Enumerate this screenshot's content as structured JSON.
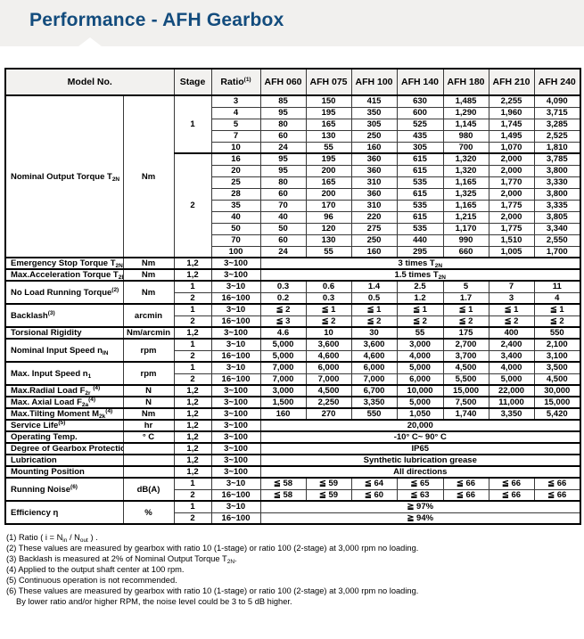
{
  "page": {
    "title": "Performance - AFH Gearbox"
  },
  "colors": {
    "title": "#134c7d",
    "banner_bg": "#f1f0ee",
    "header_bg": "#f2f1ef"
  },
  "table": {
    "header": {
      "model_label": "Model No.",
      "stage_label": "Stage",
      "ratio_label": "Ratio^(1)^",
      "models": [
        "AFH 060",
        "AFH 075",
        "AFH 100",
        "AFH 140",
        "AFH 180",
        "AFH 210",
        "AFH 240"
      ]
    },
    "torque_section": {
      "label": "Nominal Output Torque T~2N~",
      "unit": "Nm",
      "stages": [
        {
          "stage": "1",
          "rows": [
            {
              "ratio": "3",
              "values": [
                "85",
                "150",
                "415",
                "630",
                "1,485",
                "2,255",
                "4,090"
              ]
            },
            {
              "ratio": "4",
              "values": [
                "95",
                "195",
                "350",
                "600",
                "1,290",
                "1,960",
                "3,715"
              ]
            },
            {
              "ratio": "5",
              "values": [
                "80",
                "165",
                "305",
                "525",
                "1,145",
                "1,745",
                "3,285"
              ]
            },
            {
              "ratio": "7",
              "values": [
                "60",
                "130",
                "250",
                "435",
                "980",
                "1,495",
                "2,525"
              ]
            },
            {
              "ratio": "10",
              "values": [
                "24",
                "55",
                "160",
                "305",
                "700",
                "1,070",
                "1,810"
              ]
            }
          ]
        },
        {
          "stage": "2",
          "rows": [
            {
              "ratio": "16",
              "values": [
                "95",
                "195",
                "360",
                "615",
                "1,320",
                "2,000",
                "3,785"
              ]
            },
            {
              "ratio": "20",
              "values": [
                "95",
                "200",
                "360",
                "615",
                "1,320",
                "2,000",
                "3,800"
              ]
            },
            {
              "ratio": "25",
              "values": [
                "80",
                "165",
                "310",
                "535",
                "1,165",
                "1,770",
                "3,330"
              ]
            },
            {
              "ratio": "28",
              "values": [
                "60",
                "200",
                "360",
                "615",
                "1,325",
                "2,000",
                "3,800"
              ]
            },
            {
              "ratio": "35",
              "values": [
                "70",
                "170",
                "310",
                "535",
                "1,165",
                "1,775",
                "3,335"
              ]
            },
            {
              "ratio": "40",
              "values": [
                "40",
                "96",
                "220",
                "615",
                "1,215",
                "2,000",
                "3,805"
              ]
            },
            {
              "ratio": "50",
              "values": [
                "50",
                "120",
                "275",
                "535",
                "1,170",
                "1,775",
                "3,340"
              ]
            },
            {
              "ratio": "70",
              "values": [
                "60",
                "130",
                "250",
                "440",
                "990",
                "1,510",
                "2,550"
              ]
            },
            {
              "ratio": "100",
              "values": [
                "24",
                "55",
                "160",
                "295",
                "660",
                "1,005",
                "1,700"
              ]
            }
          ]
        }
      ]
    },
    "spec_sections": [
      {
        "label": "Emergency Stop Torque T~2NOT~",
        "unit": "Nm",
        "rows": [
          {
            "stage": "1,2",
            "ratio": "3~100",
            "span": "3 times T~2N~"
          }
        ]
      },
      {
        "label": "Max.Acceleration Torque T~2B~",
        "unit": "Nm",
        "rows": [
          {
            "stage": "1,2",
            "ratio": "3~100",
            "span": "1.5 times T~2N~"
          }
        ]
      },
      {
        "label": "No Load Running Torque^(2)^",
        "unit": "Nm",
        "rows": [
          {
            "stage": "1",
            "ratio": "3~10",
            "values": [
              "0.3",
              "0.6",
              "1.4",
              "2.5",
              "5",
              "7",
              "11"
            ]
          },
          {
            "stage": "2",
            "ratio": "16~100",
            "values": [
              "0.2",
              "0.3",
              "0.5",
              "1.2",
              "1.7",
              "3",
              "4"
            ]
          }
        ]
      },
      {
        "label": "Backlash^(3)^",
        "unit": "arcmin",
        "rows": [
          {
            "stage": "1",
            "ratio": "3~10",
            "values": [
              "≦ 2",
              "≦ 1",
              "≦ 1",
              "≦ 1",
              "≦ 1",
              "≦ 1",
              "≦ 1"
            ]
          },
          {
            "stage": "2",
            "ratio": "16~100",
            "values": [
              "≦ 3",
              "≦ 2",
              "≦ 2",
              "≦ 2",
              "≦ 2",
              "≦ 2",
              "≦ 2"
            ]
          }
        ]
      },
      {
        "label": "Torsional Rigidity",
        "unit": "Nm/arcmin",
        "rows": [
          {
            "stage": "1,2",
            "ratio": "3~100",
            "values": [
              "4.6",
              "10",
              "30",
              "55",
              "175",
              "400",
              "550"
            ]
          }
        ]
      },
      {
        "label": "Nominal Input Speed n~IN~",
        "unit": "rpm",
        "rows": [
          {
            "stage": "1",
            "ratio": "3~10",
            "values": [
              "5,000",
              "3,600",
              "3,600",
              "3,000",
              "2,700",
              "2,400",
              "2,100"
            ]
          },
          {
            "stage": "2",
            "ratio": "16~100",
            "values": [
              "5,000",
              "4,600",
              "4,600",
              "4,000",
              "3,700",
              "3,400",
              "3,100"
            ]
          }
        ]
      },
      {
        "label": "Max. Input Speed n~1~",
        "unit": "rpm",
        "rows": [
          {
            "stage": "1",
            "ratio": "3~10",
            "values": [
              "7,000",
              "6,000",
              "6,000",
              "5,000",
              "4,500",
              "4,000",
              "3,500"
            ]
          },
          {
            "stage": "2",
            "ratio": "16~100",
            "values": [
              "7,000",
              "7,000",
              "7,000",
              "6,000",
              "5,500",
              "5,000",
              "4,500"
            ]
          }
        ]
      },
      {
        "label": "Max.Radial Load F~2r~ ^(4)^",
        "unit": "N",
        "rows": [
          {
            "stage": "1,2",
            "ratio": "3~100",
            "values": [
              "3,000",
              "4,500",
              "6,700",
              "10,000",
              "15,000",
              "22,000",
              "30,000"
            ]
          }
        ]
      },
      {
        "label": "Max. Axial Load F~2a~^(4)^",
        "unit": "N",
        "rows": [
          {
            "stage": "1,2",
            "ratio": "3~100",
            "values": [
              "1,500",
              "2,250",
              "3,350",
              "5,000",
              "7,500",
              "11,000",
              "15,000"
            ]
          }
        ]
      },
      {
        "label": "Max.Tilting Moment  M~2k~^(4)^",
        "unit": "Nm",
        "rows": [
          {
            "stage": "1,2",
            "ratio": "3~100",
            "values": [
              "160",
              "270",
              "550",
              "1,050",
              "1,740",
              "3,350",
              "5,420"
            ]
          }
        ]
      },
      {
        "label": "Service Life^(5)^",
        "unit": "hr",
        "rows": [
          {
            "stage": "1,2",
            "ratio": "3~100",
            "span": "20,000"
          }
        ]
      },
      {
        "label": "Operating Temp.",
        "unit": "° C",
        "rows": [
          {
            "stage": "1,2",
            "ratio": "3~100",
            "span": "-10° C~ 90° C"
          }
        ]
      },
      {
        "label": "Degree of Gearbox  Protection",
        "unit": "",
        "rows": [
          {
            "stage": "1,2",
            "ratio": "3~100",
            "span": "IP65"
          }
        ]
      },
      {
        "label": "Lubrication",
        "unit": "",
        "rows": [
          {
            "stage": "1,2",
            "ratio": "3~100",
            "span": "Synthetic lubrication grease"
          }
        ]
      },
      {
        "label": "Mounting Position",
        "unit": "",
        "rows": [
          {
            "stage": "1,2",
            "ratio": "3~100",
            "span": "All directions"
          }
        ]
      },
      {
        "label": "Running Noise^(6)^",
        "unit": "dB(A)",
        "rows": [
          {
            "stage": "1",
            "ratio": "3~10",
            "values": [
              "≦ 58",
              "≦ 59",
              "≦ 64",
              "≦ 65",
              "≦ 66",
              "≦ 66",
              "≦ 66"
            ]
          },
          {
            "stage": "2",
            "ratio": "16~100",
            "values": [
              "≦ 58",
              "≦ 59",
              "≦ 60",
              "≦ 63",
              "≦ 66",
              "≦ 66",
              "≦ 66"
            ]
          }
        ]
      },
      {
        "label": "Efficiency η",
        "unit": "%",
        "rows": [
          {
            "stage": "1",
            "ratio": "3~10",
            "span": "≧ 97%"
          },
          {
            "stage": "2",
            "ratio": "16~100",
            "span": "≧ 94%"
          }
        ]
      }
    ]
  },
  "footnotes": [
    {
      "text": "(1) Ratio ( i = N~in~ / N~out~ ) .",
      "indent": false
    },
    {
      "text": "(2) These values are measured by gearbox with ratio 10 (1-stage) or ratio 100 (2-stage) at 3,000 rpm no loading.",
      "indent": false
    },
    {
      "text": "(3) Backlash is measured at 2% of Nominal Output Torque T~2N~.",
      "indent": false
    },
    {
      "text": "(4) Applied to the output shaft center at 100 rpm.",
      "indent": false
    },
    {
      "text": "(5) Continuous operation is not recommended.",
      "indent": false
    },
    {
      "text": "(6) These values are measured by gearbox with ratio 10 (1-stage) or ratio 100 (2-stage) at 3,000 rpm no loading.",
      "indent": false
    },
    {
      "text": "By lower ratio and/or higher RPM, the noise level could be 3 to 5 dB  higher.",
      "indent": true
    }
  ]
}
